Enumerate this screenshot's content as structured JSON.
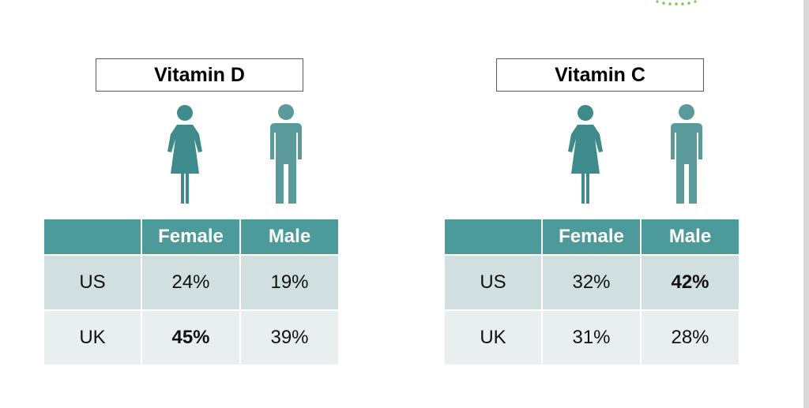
{
  "panels": [
    {
      "title": "Vitamin D",
      "headers": [
        "",
        "Female",
        "Male"
      ],
      "rows": [
        {
          "country": "US",
          "female": "24%",
          "male": "19%",
          "bold": ""
        },
        {
          "country": "UK",
          "female": "45%",
          "male": "39%",
          "bold": "female"
        }
      ]
    },
    {
      "title": "Vitamin C",
      "headers": [
        "",
        "Female",
        "Male"
      ],
      "rows": [
        {
          "country": "US",
          "female": "32%",
          "male": "42%",
          "bold": "male"
        },
        {
          "country": "UK",
          "female": "31%",
          "male": "28%",
          "bold": ""
        }
      ]
    }
  ],
  "icons": {
    "female": "female-figure-icon",
    "male": "male-figure-icon"
  },
  "colors": {
    "header_bg": "#4d9a9a",
    "row_odd": "#d1dfe0",
    "row_even": "#e9eeef",
    "female_figure": "#3f8a8a",
    "male_figure": "#5a9a9a",
    "logo_green": "#7ec850"
  }
}
